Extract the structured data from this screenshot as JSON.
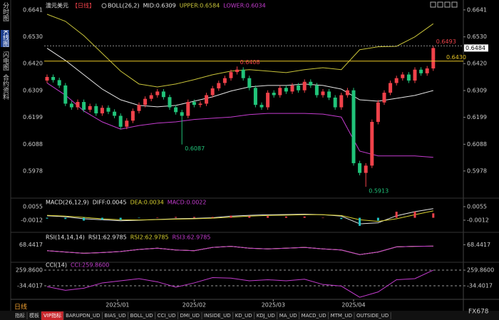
{
  "ui": {
    "side_tabs": [
      "分时图",
      "K线图",
      "闪电图",
      "合约资料"
    ],
    "period": "日线",
    "bottom_tabs": [
      "指标",
      "模板",
      "VIP指标",
      "BARUPDN_UD",
      "BIAS_UD",
      "BOLL_UD",
      "CCI_UD",
      "DMI_UD",
      "INSIDE_UD",
      "KD_UD",
      "KDJ_UD",
      "MA_UD",
      "MACD_UD",
      "MTM_UD",
      "OUTSIDE_UD"
    ],
    "brand": "FX678"
  },
  "chart_data": [
    {
      "type": "candlestick",
      "title": "澳元美元",
      "period_tag": "【日线】",
      "indicator": "BOLL(26,2)",
      "up_color": "#f0424a",
      "down_color": "#21c47a",
      "open": [
        0.635,
        0.6365,
        0.6352,
        0.633,
        0.6255,
        0.624,
        0.6262,
        0.623,
        0.6245,
        0.6215,
        0.6238,
        0.6222,
        0.6205,
        0.616,
        0.6185,
        0.6225,
        0.625,
        0.6275,
        0.629,
        0.6305,
        0.6282,
        0.624,
        0.622,
        0.6205,
        0.6262,
        0.625,
        0.6255,
        0.629,
        0.6318,
        0.634,
        0.636,
        0.6385,
        0.6395,
        0.636,
        0.632,
        0.625,
        0.624,
        0.63,
        0.629,
        0.632,
        0.6305,
        0.633,
        0.631,
        0.6345,
        0.633,
        0.629,
        0.6305,
        0.628,
        0.624,
        0.629,
        0.631,
        0.601,
        0.597,
        0.6,
        0.618,
        0.626,
        0.63,
        0.634,
        0.636,
        0.6375,
        0.635,
        0.6395,
        0.638,
        0.64
      ],
      "high": [
        0.6375,
        0.6375,
        0.6362,
        0.634,
        0.6265,
        0.6272,
        0.6272,
        0.6255,
        0.6255,
        0.6248,
        0.6248,
        0.6232,
        0.6215,
        0.6195,
        0.6235,
        0.626,
        0.6285,
        0.63,
        0.6315,
        0.6315,
        0.6292,
        0.625,
        0.623,
        0.6272,
        0.6272,
        0.6265,
        0.63,
        0.6328,
        0.635,
        0.637,
        0.6395,
        0.6408,
        0.6405,
        0.637,
        0.633,
        0.626,
        0.631,
        0.631,
        0.633,
        0.633,
        0.634,
        0.634,
        0.6355,
        0.6355,
        0.634,
        0.6315,
        0.6315,
        0.629,
        0.63,
        0.632,
        0.632,
        0.602,
        0.601,
        0.619,
        0.627,
        0.631,
        0.635,
        0.637,
        0.6385,
        0.6385,
        0.6405,
        0.6405,
        0.641,
        0.6493
      ],
      "low": [
        0.634,
        0.6342,
        0.632,
        0.6245,
        0.623,
        0.623,
        0.622,
        0.622,
        0.6205,
        0.6205,
        0.6212,
        0.6195,
        0.615,
        0.615,
        0.6175,
        0.6215,
        0.624,
        0.6265,
        0.628,
        0.6272,
        0.623,
        0.621,
        0.6087,
        0.6195,
        0.624,
        0.624,
        0.6245,
        0.628,
        0.6308,
        0.633,
        0.635,
        0.6375,
        0.635,
        0.631,
        0.624,
        0.623,
        0.623,
        0.628,
        0.628,
        0.6295,
        0.6295,
        0.63,
        0.63,
        0.632,
        0.628,
        0.628,
        0.627,
        0.623,
        0.623,
        0.628,
        0.6,
        0.596,
        0.5913,
        0.599,
        0.617,
        0.625,
        0.629,
        0.633,
        0.635,
        0.634,
        0.634,
        0.637,
        0.637,
        0.639
      ],
      "close": [
        0.6365,
        0.6352,
        0.633,
        0.6255,
        0.624,
        0.6262,
        0.623,
        0.6245,
        0.6215,
        0.6238,
        0.6222,
        0.6205,
        0.616,
        0.6185,
        0.6225,
        0.625,
        0.6275,
        0.629,
        0.6305,
        0.6282,
        0.624,
        0.622,
        0.6205,
        0.6262,
        0.625,
        0.6255,
        0.629,
        0.6318,
        0.634,
        0.636,
        0.6385,
        0.6395,
        0.636,
        0.632,
        0.625,
        0.624,
        0.63,
        0.629,
        0.632,
        0.6305,
        0.633,
        0.631,
        0.6345,
        0.633,
        0.629,
        0.6305,
        0.628,
        0.624,
        0.629,
        0.631,
        0.601,
        0.597,
        0.6,
        0.618,
        0.626,
        0.63,
        0.634,
        0.636,
        0.6375,
        0.635,
        0.6395,
        0.638,
        0.64,
        0.6484
      ],
      "ylim": [
        0.5875,
        0.6667
      ],
      "yticks": [
        0.6641,
        {
          "value": 0.653,
          "label": "0.6530"
        },
        {
          "value": 0.642,
          "label": "0.6420"
        },
        0.6309,
        0.6199,
        0.6088,
        0.5978
      ],
      "xticks": [
        {
          "value": 11.5,
          "label": "2025/01"
        },
        {
          "value": 24,
          "label": "2025/02"
        },
        {
          "value": 36.9,
          "label": "2025/03"
        },
        {
          "value": 50,
          "label": "2025/04"
        }
      ],
      "line_x": [
        0,
        3,
        6,
        9,
        12,
        15,
        18,
        21,
        24,
        27,
        30,
        33,
        36,
        39,
        42,
        45,
        48,
        51,
        54,
        57,
        60,
        63
      ],
      "series": [
        {
          "name": "MID:0.6309",
          "color": "#e6e6e6",
          "values": [
            0.6483,
            0.6433,
            0.6374,
            0.6315,
            0.6271,
            0.6248,
            0.6242,
            0.6248,
            0.6265,
            0.6283,
            0.6307,
            0.6324,
            0.633,
            0.633,
            0.6336,
            0.633,
            0.6315,
            0.6271,
            0.6265,
            0.6277,
            0.6289,
            0.6309
          ]
        },
        {
          "name": "UPPER:0.6584",
          "color": "#c9c43a",
          "values": [
            0.6623,
            0.6594,
            0.6535,
            0.6462,
            0.6389,
            0.6336,
            0.6324,
            0.6336,
            0.6354,
            0.6374,
            0.6389,
            0.6395,
            0.6389,
            0.6383,
            0.6395,
            0.6403,
            0.6395,
            0.6477,
            0.6489,
            0.6491,
            0.653,
            0.6584
          ]
        },
        {
          "name": "LOWER:0.6034",
          "color": "#c43ccf",
          "values": [
            0.634,
            0.629,
            0.6225,
            0.618,
            0.615,
            0.6165,
            0.6175,
            0.618,
            0.619,
            0.6195,
            0.62,
            0.621,
            0.6215,
            0.6215,
            0.6215,
            0.6212,
            0.62,
            0.606,
            0.604,
            0.604,
            0.604,
            0.6034
          ]
        }
      ],
      "annotations": [
        {
          "x": 31,
          "value": 0.6408
        },
        {
          "x": 22,
          "value": 0.6087
        },
        {
          "x": 52,
          "value": 0.5913
        },
        {
          "x": 63,
          "value": 0.6493
        }
      ],
      "reference_line": {
        "value": 0.643,
        "label": "0.6430",
        "color": "#e8c626"
      }
    },
    {
      "type": "macd",
      "title": "MACD(26,12,9)",
      "ylim": [
        -0.0058,
        0.0083
      ],
      "yticks": [
        0.0055,
        -0.0012
      ],
      "series": [
        {
          "name": "DIFF:0.0045",
          "color": "#e6e6e6",
          "values": [
            0.001,
            0.0005,
            -0.0005,
            -0.001,
            -0.0015,
            -0.0012,
            -0.0008,
            -0.0005,
            -0.0003,
            0.0,
            0.0008,
            0.0012,
            0.0015,
            0.0016,
            0.0018,
            0.0015,
            0.0008,
            -0.003,
            -0.0025,
            0.001,
            0.003,
            0.0045
          ]
        },
        {
          "name": "DEA:0.0034",
          "color": "#d8d030",
          "values": [
            0.0012,
            0.0008,
            0.0002,
            -0.0005,
            -0.001,
            -0.0011,
            -0.0009,
            -0.0007,
            -0.0005,
            -0.0002,
            0.0003,
            0.0008,
            0.0011,
            0.0013,
            0.0015,
            0.0015,
            0.0011,
            -0.001,
            -0.0018,
            -0.0005,
            0.0015,
            0.0034
          ]
        },
        {
          "name": "MACD:0.0022",
          "color": "#c43ccf",
          "bars": true,
          "values": [
            -0.0004,
            -0.0006,
            -0.0014,
            -0.001,
            -0.001,
            -0.0002,
            0.0002,
            0.0004,
            0.0004,
            0.0004,
            0.001,
            0.0008,
            0.0008,
            0.0006,
            0.0006,
            0.0,
            -0.0006,
            -0.004,
            -0.0014,
            0.003,
            0.003,
            0.0022
          ]
        }
      ]
    },
    {
      "type": "line",
      "title": "RSI(14,14,14)",
      "ylim": [
        0,
        100
      ],
      "yticks": [
        68.4417
      ],
      "series": [
        {
          "name": "RSI1:62.9785",
          "color": "#e6e6e6",
          "values": [
            45,
            40,
            35,
            38,
            42,
            50,
            55,
            48,
            45,
            58,
            62,
            55,
            52,
            55,
            58,
            52,
            48,
            30,
            40,
            60,
            62,
            62.9785
          ]
        },
        {
          "name": "RSI2:62.9785",
          "color": "#d8d030",
          "values": [
            45,
            40,
            35,
            38,
            42,
            50,
            55,
            48,
            45,
            58,
            62,
            55,
            52,
            55,
            58,
            52,
            48,
            30,
            40,
            60,
            62,
            62.9785
          ]
        },
        {
          "name": "RSI3:62.9785",
          "color": "#c43ccf",
          "values": [
            45,
            40,
            35,
            38,
            42,
            50,
            55,
            48,
            45,
            58,
            62,
            55,
            52,
            55,
            58,
            52,
            48,
            30,
            40,
            60,
            62,
            62.9785
          ]
        }
      ]
    },
    {
      "type": "line",
      "title": "CCI(14)",
      "ylim": [
        -262,
        354
      ],
      "grid": true,
      "yticks": [
        {
          "value": 259.86,
          "label": "259.8600"
        },
        -34.4017
      ],
      "series": [
        {
          "name": "CCI:259.8600",
          "color": "#c43ccf",
          "values": [
            -50,
            -120,
            -80,
            20,
            60,
            100,
            40,
            -60,
            20,
            120,
            110,
            60,
            80,
            60,
            90,
            -10,
            -40,
            -250,
            -150,
            80,
            100,
            259.86
          ]
        }
      ]
    }
  ]
}
